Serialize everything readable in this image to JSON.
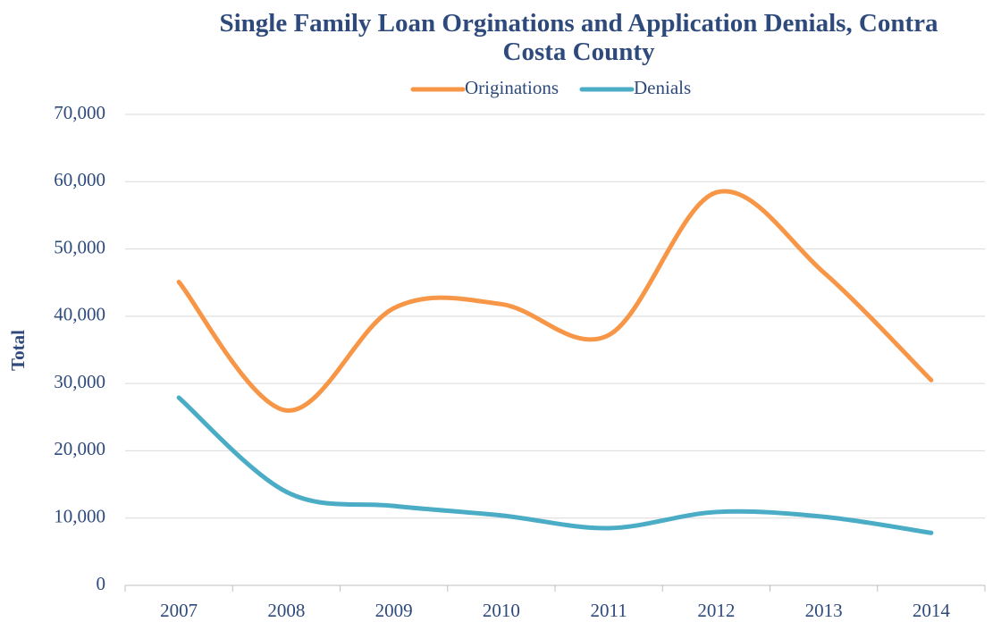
{
  "chart_data": {
    "type": "line",
    "title": "Single Family Loan Orginations and Application Denials, Contra\nCosta County",
    "y_label": "Total",
    "categories": [
      "2007",
      "2008",
      "2009",
      "2010",
      "2011",
      "2012",
      "2013",
      "2014"
    ],
    "series": [
      {
        "name": "Originations",
        "color": "#f79646",
        "values": [
          45100,
          26000,
          41200,
          41800,
          37200,
          58400,
          46500,
          30500
        ]
      },
      {
        "name": "Denials",
        "color": "#4bacc6",
        "values": [
          27900,
          13900,
          11800,
          10400,
          8500,
          10900,
          10200,
          7800
        ]
      }
    ],
    "ylim": [
      0,
      70000
    ],
    "yticks": [
      0,
      {
        "value": 10000,
        "label": "10,000"
      },
      {
        "value": 20000,
        "label": "20,000"
      },
      {
        "value": 30000,
        "label": "30,000"
      },
      {
        "value": 40000,
        "label": "40,000"
      },
      {
        "value": 50000,
        "label": "50,000"
      },
      {
        "value": 60000,
        "label": "60,000"
      },
      {
        "value": 70000,
        "label": "70,000"
      }
    ],
    "grid": true,
    "legend": "top",
    "smooth": true
  }
}
